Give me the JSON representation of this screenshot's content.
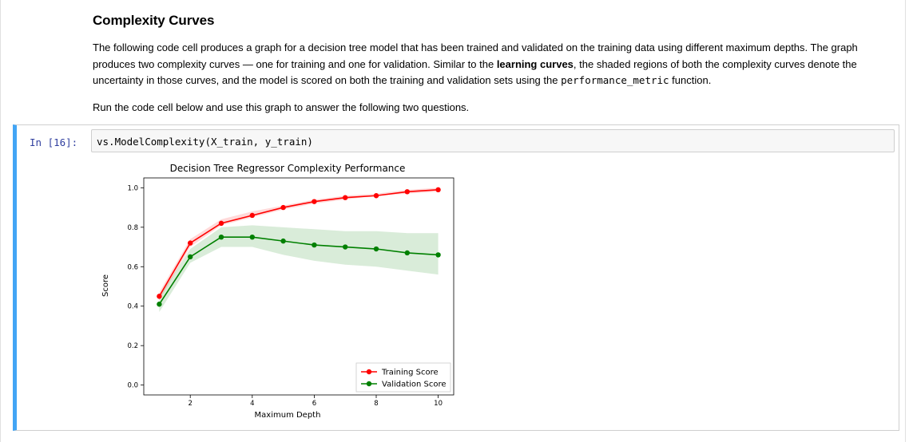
{
  "markdown": {
    "title": "Complexity Curves",
    "para1_a": "The following code cell produces a graph for a decision tree model that has been trained and validated on the training data using different maximum depths. The graph produces two complexity curves — one for training and one for validation. Similar to the ",
    "para1_bold": "learning curves",
    "para1_b": ", the shaded regions of both the complexity curves denote the uncertainty in those curves, and the model is scored on both the training and validation sets using the ",
    "para1_code": "performance_metric",
    "para1_c": " function.",
    "para2": "Run the code cell below and use this graph to answer the following two questions."
  },
  "code_cell": {
    "prompt": "In [16]:",
    "source": "vs.ModelComplexity(X_train, y_train)",
    "accent_color": "#42a5f5"
  },
  "chart_data": {
    "type": "line",
    "title": "Decision Tree Regressor Complexity Performance",
    "xlabel": "Maximum Depth",
    "ylabel": "Score",
    "xlim": [
      0.5,
      10.5
    ],
    "ylim": [
      -0.05,
      1.05
    ],
    "xticks": [
      2,
      4,
      6,
      8,
      10
    ],
    "yticks": [
      0.0,
      0.2,
      0.4,
      0.6,
      0.8,
      1.0
    ],
    "ytick_labels": [
      "0.0",
      "0.2",
      "0.4",
      "0.6",
      "0.8",
      "1.0"
    ],
    "x": [
      1,
      2,
      3,
      4,
      5,
      6,
      7,
      8,
      9,
      10
    ],
    "legend_position": "lower-right",
    "series": [
      {
        "name": "Training Score",
        "color": "#ff0000",
        "values": [
          0.45,
          0.72,
          0.82,
          0.86,
          0.9,
          0.93,
          0.95,
          0.96,
          0.98,
          0.99
        ],
        "band": [
          [
            0.43,
            0.47
          ],
          [
            0.7,
            0.74
          ],
          [
            0.81,
            0.84
          ],
          [
            0.85,
            0.88
          ],
          [
            0.89,
            0.91
          ],
          [
            0.92,
            0.94
          ],
          [
            0.94,
            0.96
          ],
          [
            0.96,
            0.97
          ],
          [
            0.97,
            0.99
          ],
          [
            0.98,
            1.0
          ]
        ]
      },
      {
        "name": "Validation Score",
        "color": "#008000",
        "values": [
          0.41,
          0.65,
          0.75,
          0.75,
          0.73,
          0.71,
          0.7,
          0.69,
          0.67,
          0.66
        ],
        "band": [
          [
            0.37,
            0.45
          ],
          [
            0.62,
            0.69
          ],
          [
            0.7,
            0.8
          ],
          [
            0.7,
            0.81
          ],
          [
            0.66,
            0.8
          ],
          [
            0.63,
            0.79
          ],
          [
            0.61,
            0.78
          ],
          [
            0.6,
            0.78
          ],
          [
            0.58,
            0.77
          ],
          [
            0.56,
            0.77
          ]
        ]
      }
    ]
  }
}
